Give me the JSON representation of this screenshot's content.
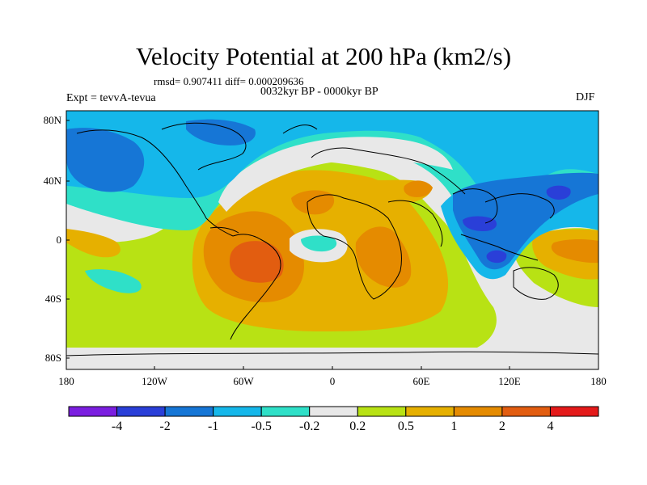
{
  "title": "Velocity Potential at 200 hPa (km2/s)",
  "stats": "rmsd= 0.907411 diff= 0.000209636",
  "experiment": "Expt = tevvA-tevua",
  "period": "0032kyr BP - 0000kyr BP",
  "season": "DJF",
  "lat_ticks": [
    "80N",
    "40N",
    "0",
    "40S",
    "80S"
  ],
  "lon_ticks": [
    "180",
    "120W",
    "60W",
    "0",
    "60E",
    "120E",
    "180"
  ],
  "colorbar": {
    "colors": [
      "#7b1fe0",
      "#2a3fd8",
      "#1676d6",
      "#15b7ea",
      "#2fe0c8",
      "#e8e8e8",
      "#b8e214",
      "#e6b000",
      "#e58b00",
      "#e25d10",
      "#e41a1a"
    ],
    "labels": [
      "-4",
      "-2",
      "-1",
      "-0.5",
      "-0.2",
      "0.2",
      "0.5",
      "1",
      "2",
      "4"
    ]
  }
}
